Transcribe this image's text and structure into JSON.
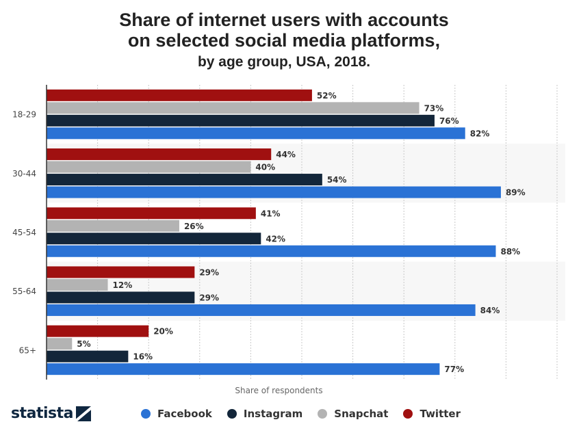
{
  "title": "Share of internet users with accounts on selected social media platforms,",
  "title_line1": "Share of internet users with accounts",
  "title_line2": "on selected social media platforms,",
  "subtitle": "by age group, USA, 2018.",
  "brand": "statista",
  "chart_data": {
    "type": "bar",
    "orientation": "horizontal",
    "categories": [
      "18-29",
      "30-44",
      "45-54",
      "55-64",
      "65+"
    ],
    "series": [
      {
        "name": "Twitter",
        "color": "#a01010",
        "values": [
          52,
          44,
          41,
          29,
          20
        ]
      },
      {
        "name": "Snapchat",
        "color": "#b3b3b3",
        "values": [
          73,
          40,
          26,
          12,
          5
        ]
      },
      {
        "name": "Instagram",
        "color": "#13263a",
        "values": [
          76,
          54,
          42,
          29,
          16
        ]
      },
      {
        "name": "Facebook",
        "color": "#2a72d5",
        "values": [
          82,
          89,
          88,
          84,
          77
        ]
      }
    ],
    "value_suffix": "%",
    "xlabel": "Share of respondents",
    "xlim": [
      0,
      100
    ],
    "grid": true,
    "legend": "bottom",
    "legend_order": [
      "Facebook",
      "Instagram",
      "Snapchat",
      "Twitter"
    ]
  }
}
